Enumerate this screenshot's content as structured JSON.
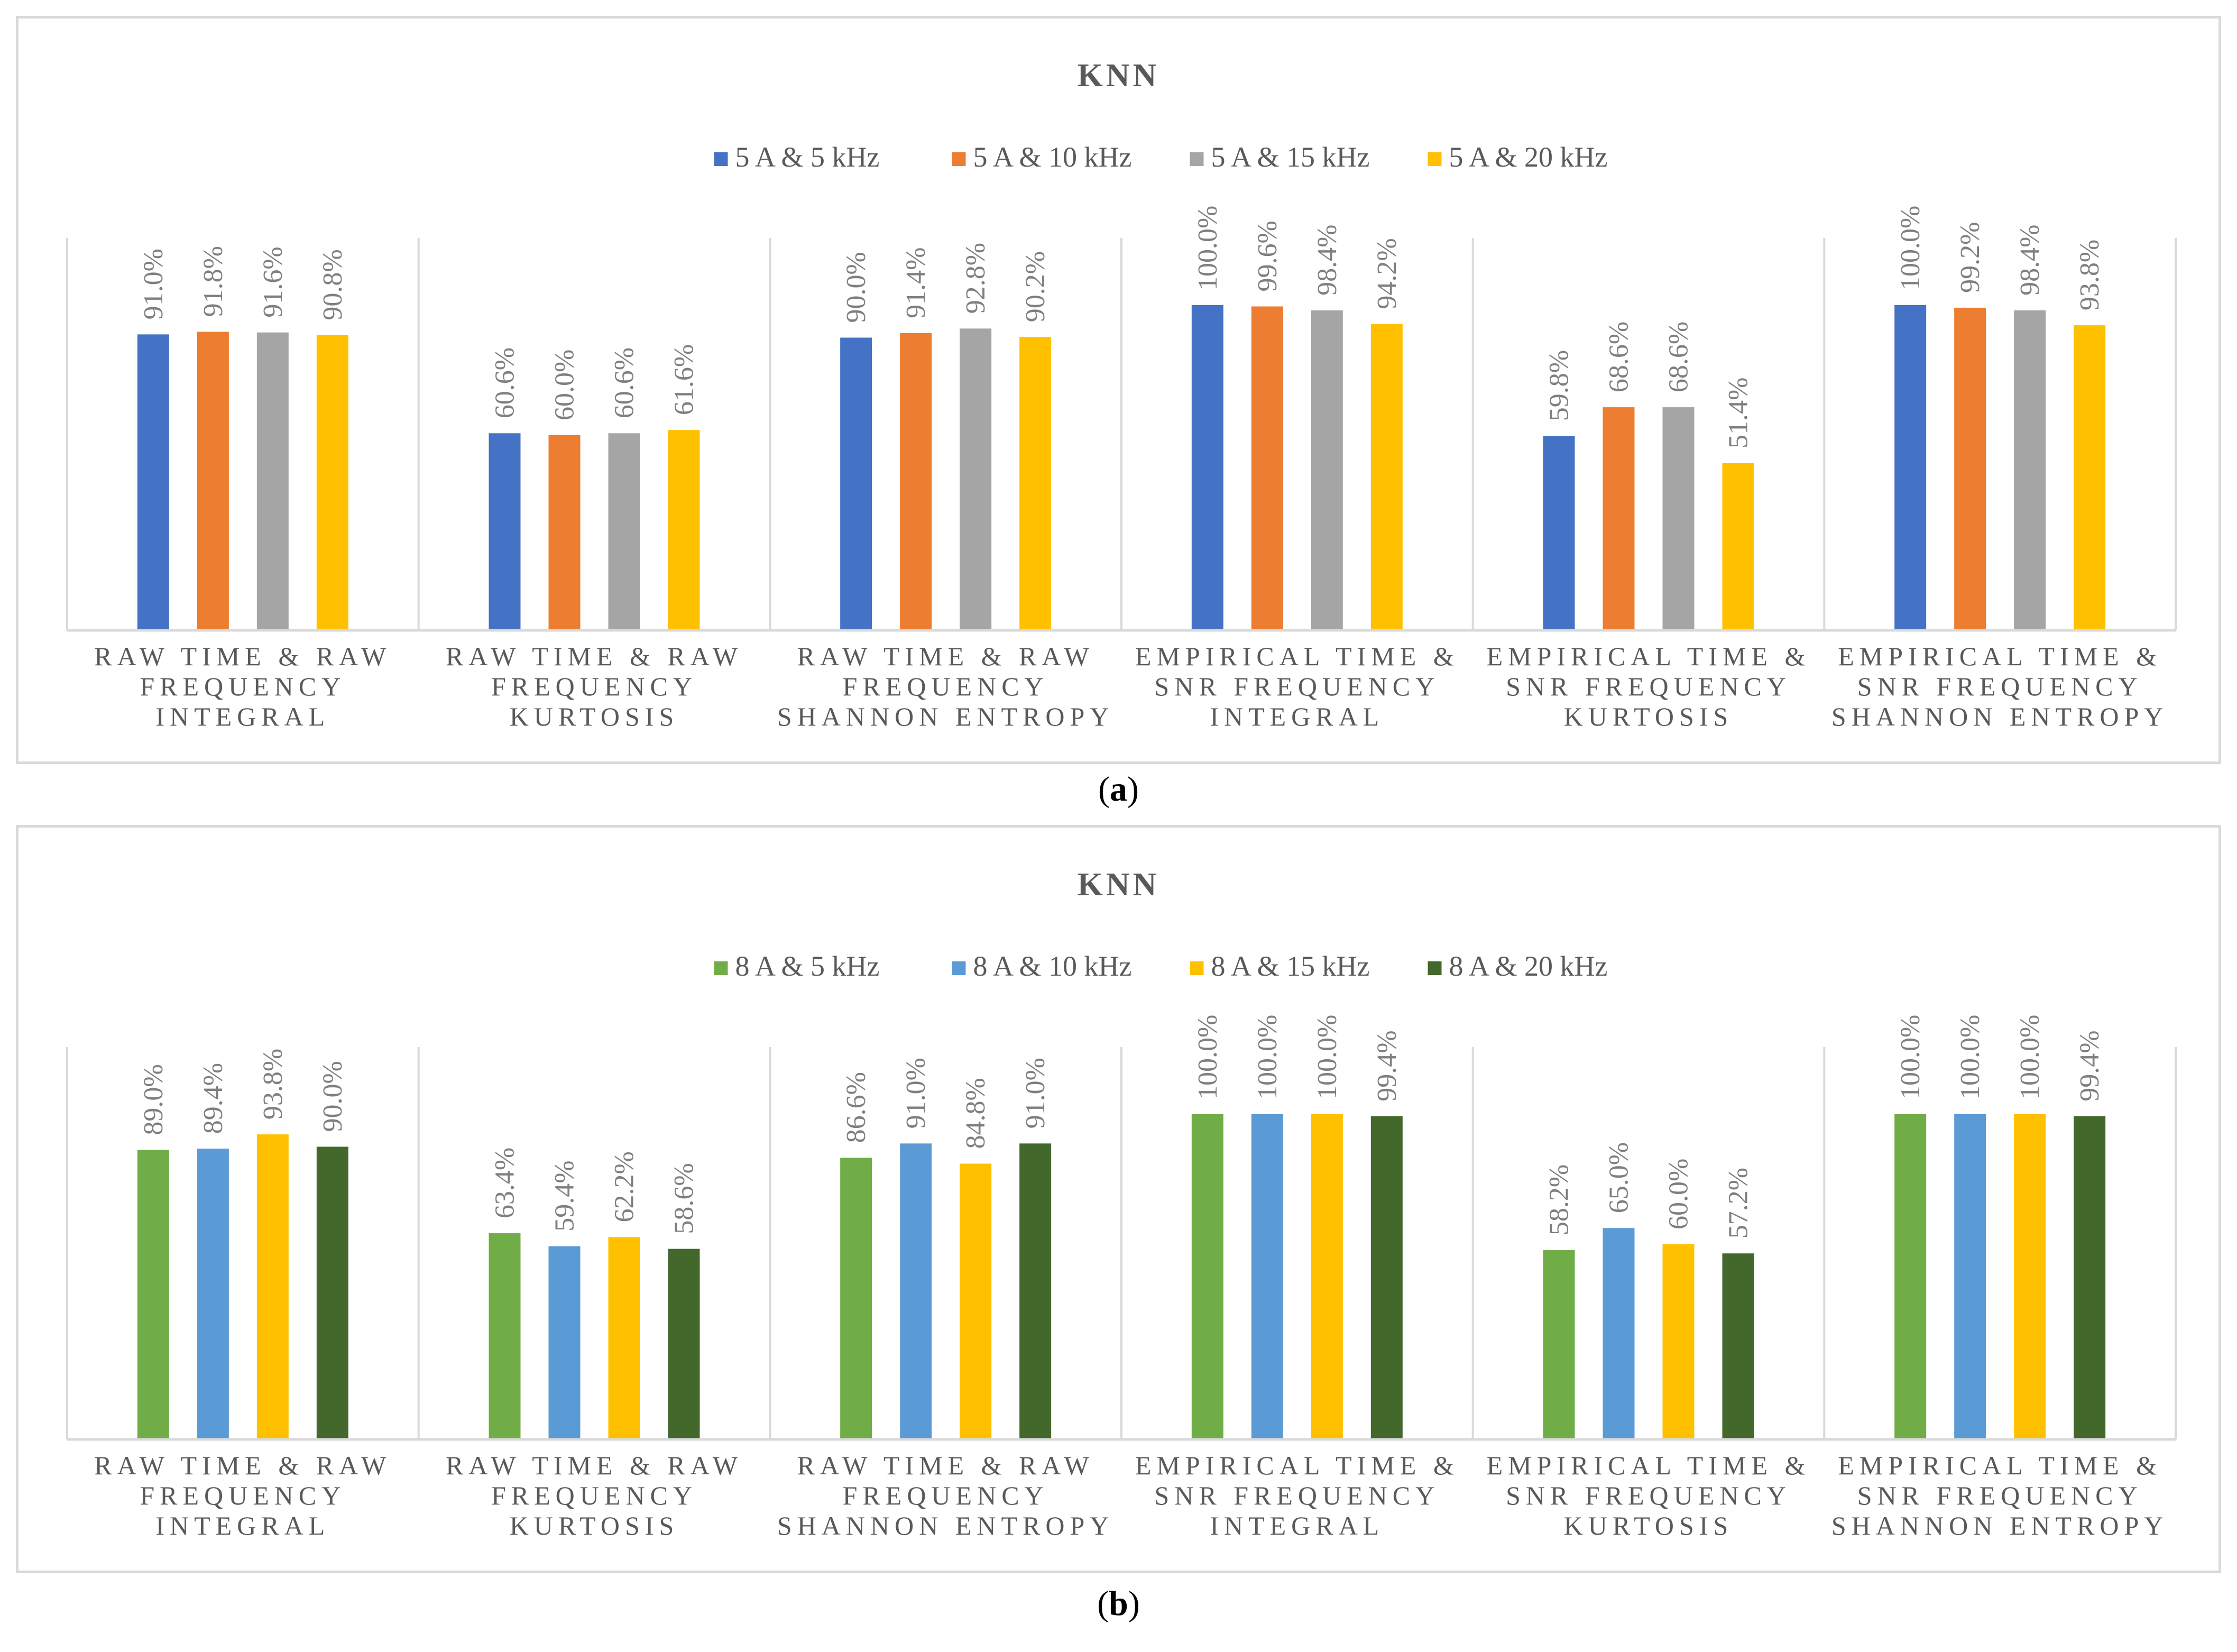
{
  "chart_data": [
    {
      "type": "bar",
      "title": "KNN",
      "caption_label": "a",
      "categories": [
        [
          "RAW TIME & RAW",
          "FREQUENCY",
          "INTEGRAL"
        ],
        [
          "RAW TIME & RAW",
          "FREQUENCY",
          "KURTOSIS"
        ],
        [
          "RAW TIME & RAW",
          "FREQUENCY",
          "SHANNON ENTROPY"
        ],
        [
          "EMPIRICAL TIME &",
          "SNR FREQUENCY",
          "INTEGRAL"
        ],
        [
          "EMPIRICAL TIME &",
          "SNR FREQUENCY",
          "KURTOSIS"
        ],
        [
          "EMPIRICAL TIME &",
          "SNR FREQUENCY",
          "SHANNON ENTROPY"
        ]
      ],
      "series": [
        {
          "name": "5 A & 5 kHz",
          "color": "#4472c4",
          "values": [
            91.0,
            60.6,
            90.0,
            100.0,
            59.8,
            100.0
          ],
          "labels": [
            "91.0%",
            "60.6%",
            "90.0%",
            "100.0%",
            "59.8%",
            "100.0%"
          ]
        },
        {
          "name": "5 A & 10 kHz",
          "color": "#ed7d31",
          "values": [
            91.8,
            60.0,
            91.4,
            99.6,
            68.6,
            99.2
          ],
          "labels": [
            "91.8%",
            "60.0%",
            "91.4%",
            "99.6%",
            "68.6%",
            "99.2%"
          ]
        },
        {
          "name": "5 A & 15 kHz",
          "color": "#a5a5a5",
          "values": [
            91.6,
            60.6,
            92.8,
            98.4,
            68.6,
            98.4
          ],
          "labels": [
            "91.6%",
            "60.6%",
            "92.8%",
            "98.4%",
            "68.6%",
            "98.4%"
          ]
        },
        {
          "name": "5 A & 20 kHz",
          "color": "#ffc000",
          "values": [
            90.8,
            61.6,
            90.2,
            94.2,
            51.4,
            93.8
          ],
          "labels": [
            "90.8%",
            "61.6%",
            "90.2%",
            "94.2%",
            "51.4%",
            "93.8%"
          ]
        }
      ],
      "ylim": [
        0,
        100
      ],
      "grid": false,
      "legend": "top-center"
    },
    {
      "type": "bar",
      "title": "KNN",
      "caption_label": "b",
      "categories": [
        [
          "RAW TIME & RAW",
          "FREQUENCY",
          "INTEGRAL"
        ],
        [
          "RAW TIME & RAW",
          "FREQUENCY",
          "KURTOSIS"
        ],
        [
          "RAW TIME & RAW",
          "FREQUENCY",
          "SHANNON ENTROPY"
        ],
        [
          "EMPIRICAL TIME &",
          "SNR FREQUENCY",
          "INTEGRAL"
        ],
        [
          "EMPIRICAL TIME &",
          "SNR FREQUENCY",
          "KURTOSIS"
        ],
        [
          "EMPIRICAL TIME &",
          "SNR FREQUENCY",
          "SHANNON ENTROPY"
        ]
      ],
      "series": [
        {
          "name": "8 A & 5 kHz",
          "color": "#70ad47",
          "values": [
            89.0,
            63.4,
            86.6,
            100.0,
            58.2,
            100.0
          ],
          "labels": [
            "89.0%",
            "63.4%",
            "86.6%",
            "100.0%",
            "58.2%",
            "100.0%"
          ]
        },
        {
          "name": "8 A & 10 kHz",
          "color": "#5b9bd5",
          "values": [
            89.4,
            59.4,
            91.0,
            100.0,
            65.0,
            100.0
          ],
          "labels": [
            "89.4%",
            "59.4%",
            "91.0%",
            "100.0%",
            "65.0%",
            "100.0%"
          ]
        },
        {
          "name": "8 A & 15 kHz",
          "color": "#ffc000",
          "values": [
            93.8,
            62.2,
            84.8,
            100.0,
            60.0,
            100.0
          ],
          "labels": [
            "93.8%",
            "62.2%",
            "84.8%",
            "100.0%",
            "60.0%",
            "100.0%"
          ]
        },
        {
          "name": "8 A & 20 kHz",
          "color": "#43682b",
          "values": [
            90.0,
            58.6,
            91.0,
            99.4,
            57.2,
            99.4
          ],
          "labels": [
            "90.0%",
            "58.6%",
            "91.0%",
            "99.4%",
            "57.2%",
            "99.4%"
          ]
        }
      ],
      "ylim": [
        0,
        100
      ],
      "grid": false,
      "legend": "top-center"
    }
  ]
}
